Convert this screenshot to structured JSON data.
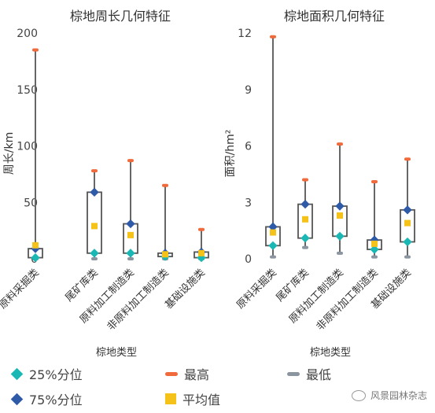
{
  "chart_data": [
    {
      "type": "boxplot",
      "title": "棕地周长几何特征",
      "xlabel": "棕地类型",
      "ylabel": "周长/km",
      "ylim": [
        0,
        200
      ],
      "yticks": [
        0,
        50,
        100,
        150,
        200
      ],
      "ytick_labels": [
        "0",
        "50",
        "100",
        "150",
        "200"
      ],
      "categories": [
        "原料采掘类",
        "尾矿库类",
        "原料加工制造类",
        "非原料加工制造类",
        "基础设施类"
      ],
      "series": [
        {
          "name": "25%分位",
          "values": [
            1,
            5,
            5,
            2,
            1
          ]
        },
        {
          "name": "75%分位",
          "values": [
            9,
            59,
            31,
            5,
            6
          ]
        },
        {
          "name": "最高",
          "values": [
            185,
            78,
            87,
            65,
            26
          ]
        },
        {
          "name": "最低",
          "values": [
            0,
            0,
            0,
            0,
            0
          ]
        },
        {
          "name": "平均值",
          "values": [
            12,
            29,
            21,
            4,
            5
          ]
        }
      ]
    },
    {
      "type": "boxplot",
      "title": "棕地面积几何特征",
      "xlabel": "棕地类型",
      "ylabel": "面积/hm²",
      "ylim": [
        0,
        12
      ],
      "yticks": [
        0,
        3,
        6,
        9,
        12
      ],
      "ytick_labels": [
        "0",
        "3",
        "6",
        "9",
        "12"
      ],
      "categories": [
        "原料采掘类",
        "尾矿库类",
        "原料加工制造类",
        "非原料加工制造类",
        "基础设施类"
      ],
      "series": [
        {
          "name": "25%分位",
          "values": [
            0.7,
            1.1,
            1.2,
            0.5,
            0.9
          ]
        },
        {
          "name": "75%分位",
          "values": [
            1.7,
            2.9,
            2.8,
            1.0,
            2.6
          ]
        },
        {
          "name": "最高",
          "values": [
            11.8,
            4.2,
            6.1,
            4.1,
            5.3
          ]
        },
        {
          "name": "最低",
          "values": [
            0.1,
            0.6,
            0.3,
            0.1,
            0.1
          ]
        },
        {
          "name": "平均值",
          "values": [
            1.4,
            2.1,
            2.3,
            0.8,
            1.9
          ]
        }
      ]
    }
  ],
  "legend": [
    {
      "label": "25%分位",
      "color": "#19b8b4",
      "shape": "diamond"
    },
    {
      "label": "75%分位",
      "color": "#2e5aa8",
      "shape": "diamond"
    },
    {
      "label": "最高",
      "color": "#f06a3c",
      "shape": "dash"
    },
    {
      "label": "平均值",
      "color": "#f5c21a",
      "shape": "square"
    },
    {
      "label": "最低",
      "color": "#8b95a0",
      "shape": "dash"
    }
  ],
  "watermark": "风景园林杂志"
}
